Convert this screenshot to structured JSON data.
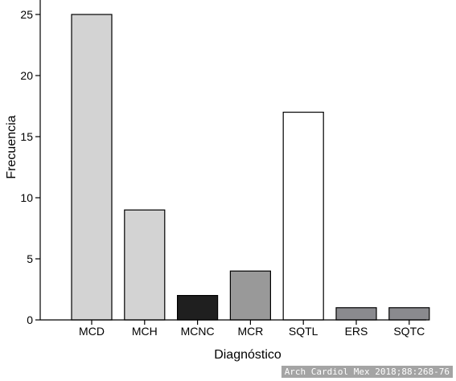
{
  "chart_data": {
    "type": "bar",
    "categories": [
      "MCD",
      "MCH",
      "MCNC",
      "MCR",
      "SQTL",
      "ERS",
      "SQTC"
    ],
    "values": [
      25,
      9,
      2,
      4,
      17,
      1,
      1
    ],
    "colors": [
      "#d3d3d3",
      "#d3d3d3",
      "#1f1f1f",
      "#999999",
      "#ffffff",
      "#8a8a8e",
      "#8a8a8e"
    ],
    "xlabel": "Diagnóstico",
    "ylabel": "Frecuencia",
    "ylim": [
      0,
      26
    ],
    "yticks": [
      0,
      5,
      10,
      15,
      20,
      25
    ],
    "grid": false,
    "legend": "none"
  },
  "credit": "Arch Cardiol Mex 2018;88:268-76"
}
